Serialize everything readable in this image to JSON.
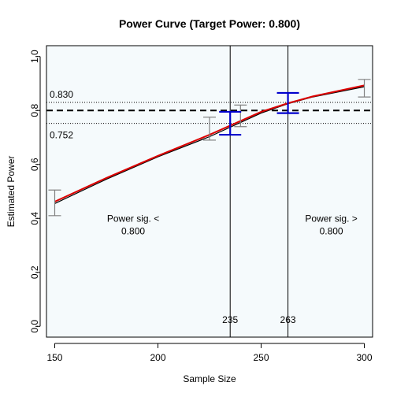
{
  "chart_data": {
    "type": "line",
    "title": "Power Curve (Target Power: 0.800)",
    "xlabel": "Sample Size",
    "ylabel": "Estimated Power",
    "xlim": [
      146,
      304
    ],
    "ylim": [
      -0.04,
      1.04
    ],
    "x_ticks": [
      150,
      200,
      250,
      300
    ],
    "y_ticks": [
      0.0,
      0.2,
      0.4,
      0.6,
      0.8,
      1.0
    ],
    "x_tick_labels": [
      "150",
      "200",
      "250",
      "300"
    ],
    "y_tick_labels": [
      "0.0",
      "0.2",
      "0.4",
      "0.6",
      "0.8",
      "1.0"
    ],
    "background_color": "#f5fafc",
    "target_power": 0.8,
    "target_label": "",
    "ci_band": {
      "upper": 0.83,
      "lower": 0.752,
      "upper_label": "0.830",
      "lower_label": "0.752"
    },
    "series": [
      {
        "color": "#000000",
        "x": [
          150,
          175,
          200,
          225,
          250,
          263,
          275,
          300
        ],
        "y": [
          0.455,
          0.545,
          0.628,
          0.703,
          0.79,
          0.825,
          0.85,
          0.888
        ]
      },
      {
        "color": "#dd0000",
        "x": [
          150,
          175,
          200,
          225,
          250,
          263,
          275,
          300
        ],
        "y": [
          0.462,
          0.55,
          0.632,
          0.71,
          0.795,
          0.827,
          0.852,
          0.893
        ]
      }
    ],
    "error_bars_grey": [
      {
        "x": 150,
        "lower": 0.41,
        "upper": 0.505
      },
      {
        "x": 225,
        "lower": 0.69,
        "upper": 0.775
      },
      {
        "x": 240,
        "lower": 0.74,
        "upper": 0.82
      },
      {
        "x": 300,
        "lower": 0.85,
        "upper": 0.915
      }
    ],
    "error_bars_blue": [
      {
        "x": 235,
        "lower": 0.71,
        "upper": 0.795
      },
      {
        "x": 263,
        "lower": 0.79,
        "upper": 0.865
      }
    ],
    "vertical_lines": [
      {
        "x": 235,
        "label": "235"
      },
      {
        "x": 263,
        "label": "263"
      }
    ],
    "annotations": [
      {
        "line1": "Power sig. <",
        "line2": "0.800",
        "x": 188,
        "y": 0.4
      },
      {
        "line1": "Power sig. >",
        "line2": "0.800",
        "x": 284,
        "y": 0.4
      }
    ],
    "colors": {
      "target_line": "#000000",
      "ci_lines": "#000000",
      "grey_bars": "#808080",
      "blue_bars": "#0000cc"
    }
  }
}
